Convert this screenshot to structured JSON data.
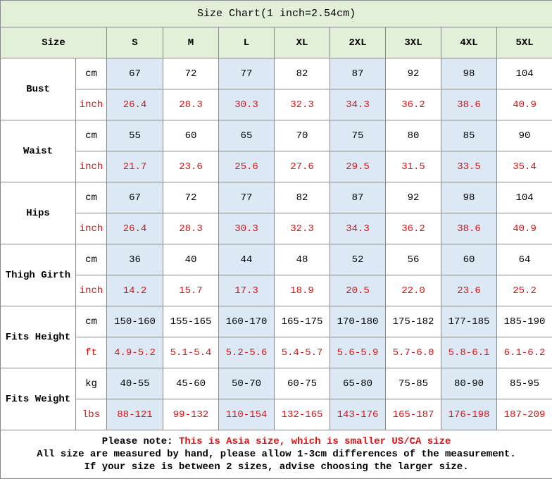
{
  "title": "Size Chart(1 inch=2.54cm)",
  "header": {
    "label": "Size",
    "sizes": [
      "S",
      "M",
      "L",
      "XL",
      "2XL",
      "3XL",
      "4XL",
      "5XL"
    ]
  },
  "groups": [
    {
      "label": "Bust",
      "rows": [
        {
          "unit": "cm",
          "values": [
            "67",
            "72",
            "77",
            "82",
            "87",
            "92",
            "98",
            "104"
          ]
        },
        {
          "unit": "inch",
          "values": [
            "26.4",
            "28.3",
            "30.3",
            "32.3",
            "34.3",
            "36.2",
            "38.6",
            "40.9"
          ]
        }
      ]
    },
    {
      "label": "Waist",
      "rows": [
        {
          "unit": "cm",
          "values": [
            "55",
            "60",
            "65",
            "70",
            "75",
            "80",
            "85",
            "90"
          ]
        },
        {
          "unit": "inch",
          "values": [
            "21.7",
            "23.6",
            "25.6",
            "27.6",
            "29.5",
            "31.5",
            "33.5",
            "35.4"
          ]
        }
      ]
    },
    {
      "label": "Hips",
      "rows": [
        {
          "unit": "cm",
          "values": [
            "67",
            "72",
            "77",
            "82",
            "87",
            "92",
            "98",
            "104"
          ]
        },
        {
          "unit": "inch",
          "values": [
            "26.4",
            "28.3",
            "30.3",
            "32.3",
            "34.3",
            "36.2",
            "38.6",
            "40.9"
          ]
        }
      ]
    },
    {
      "label": "Thigh Girth",
      "rows": [
        {
          "unit": "cm",
          "values": [
            "36",
            "40",
            "44",
            "48",
            "52",
            "56",
            "60",
            "64"
          ]
        },
        {
          "unit": "inch",
          "values": [
            "14.2",
            "15.7",
            "17.3",
            "18.9",
            "20.5",
            "22.0",
            "23.6",
            "25.2"
          ]
        }
      ]
    },
    {
      "label": "Fits Height",
      "rows": [
        {
          "unit": "cm",
          "values": [
            "150-160",
            "155-165",
            "160-170",
            "165-175",
            "170-180",
            "175-182",
            "177-185",
            "185-190"
          ]
        },
        {
          "unit": "ft",
          "values": [
            "4.9-5.2",
            "5.1-5.4",
            "5.2-5.6",
            "5.4-5.7",
            "5.6-5.9",
            "5.7-6.0",
            "5.8-6.1",
            "6.1-6.2"
          ]
        }
      ]
    },
    {
      "label": "Fits Weight",
      "rows": [
        {
          "unit": "kg",
          "values": [
            "40-55",
            "45-60",
            "50-70",
            "60-75",
            "65-80",
            "75-85",
            "80-90",
            "85-95"
          ]
        },
        {
          "unit": "lbs",
          "values": [
            "88-121",
            "99-132",
            "110-154",
            "132-165",
            "143-176",
            "165-187",
            "176-198",
            "187-209"
          ]
        }
      ]
    }
  ],
  "note": {
    "lead": "Please note:",
    "highlight": "This is Asia size, which is smaller US/CA size",
    "lines": [
      "All size are measured by hand, please allow 1-3cm differences of the measurement.",
      "If your size is between 2 sizes, advise choosing the larger size."
    ]
  }
}
